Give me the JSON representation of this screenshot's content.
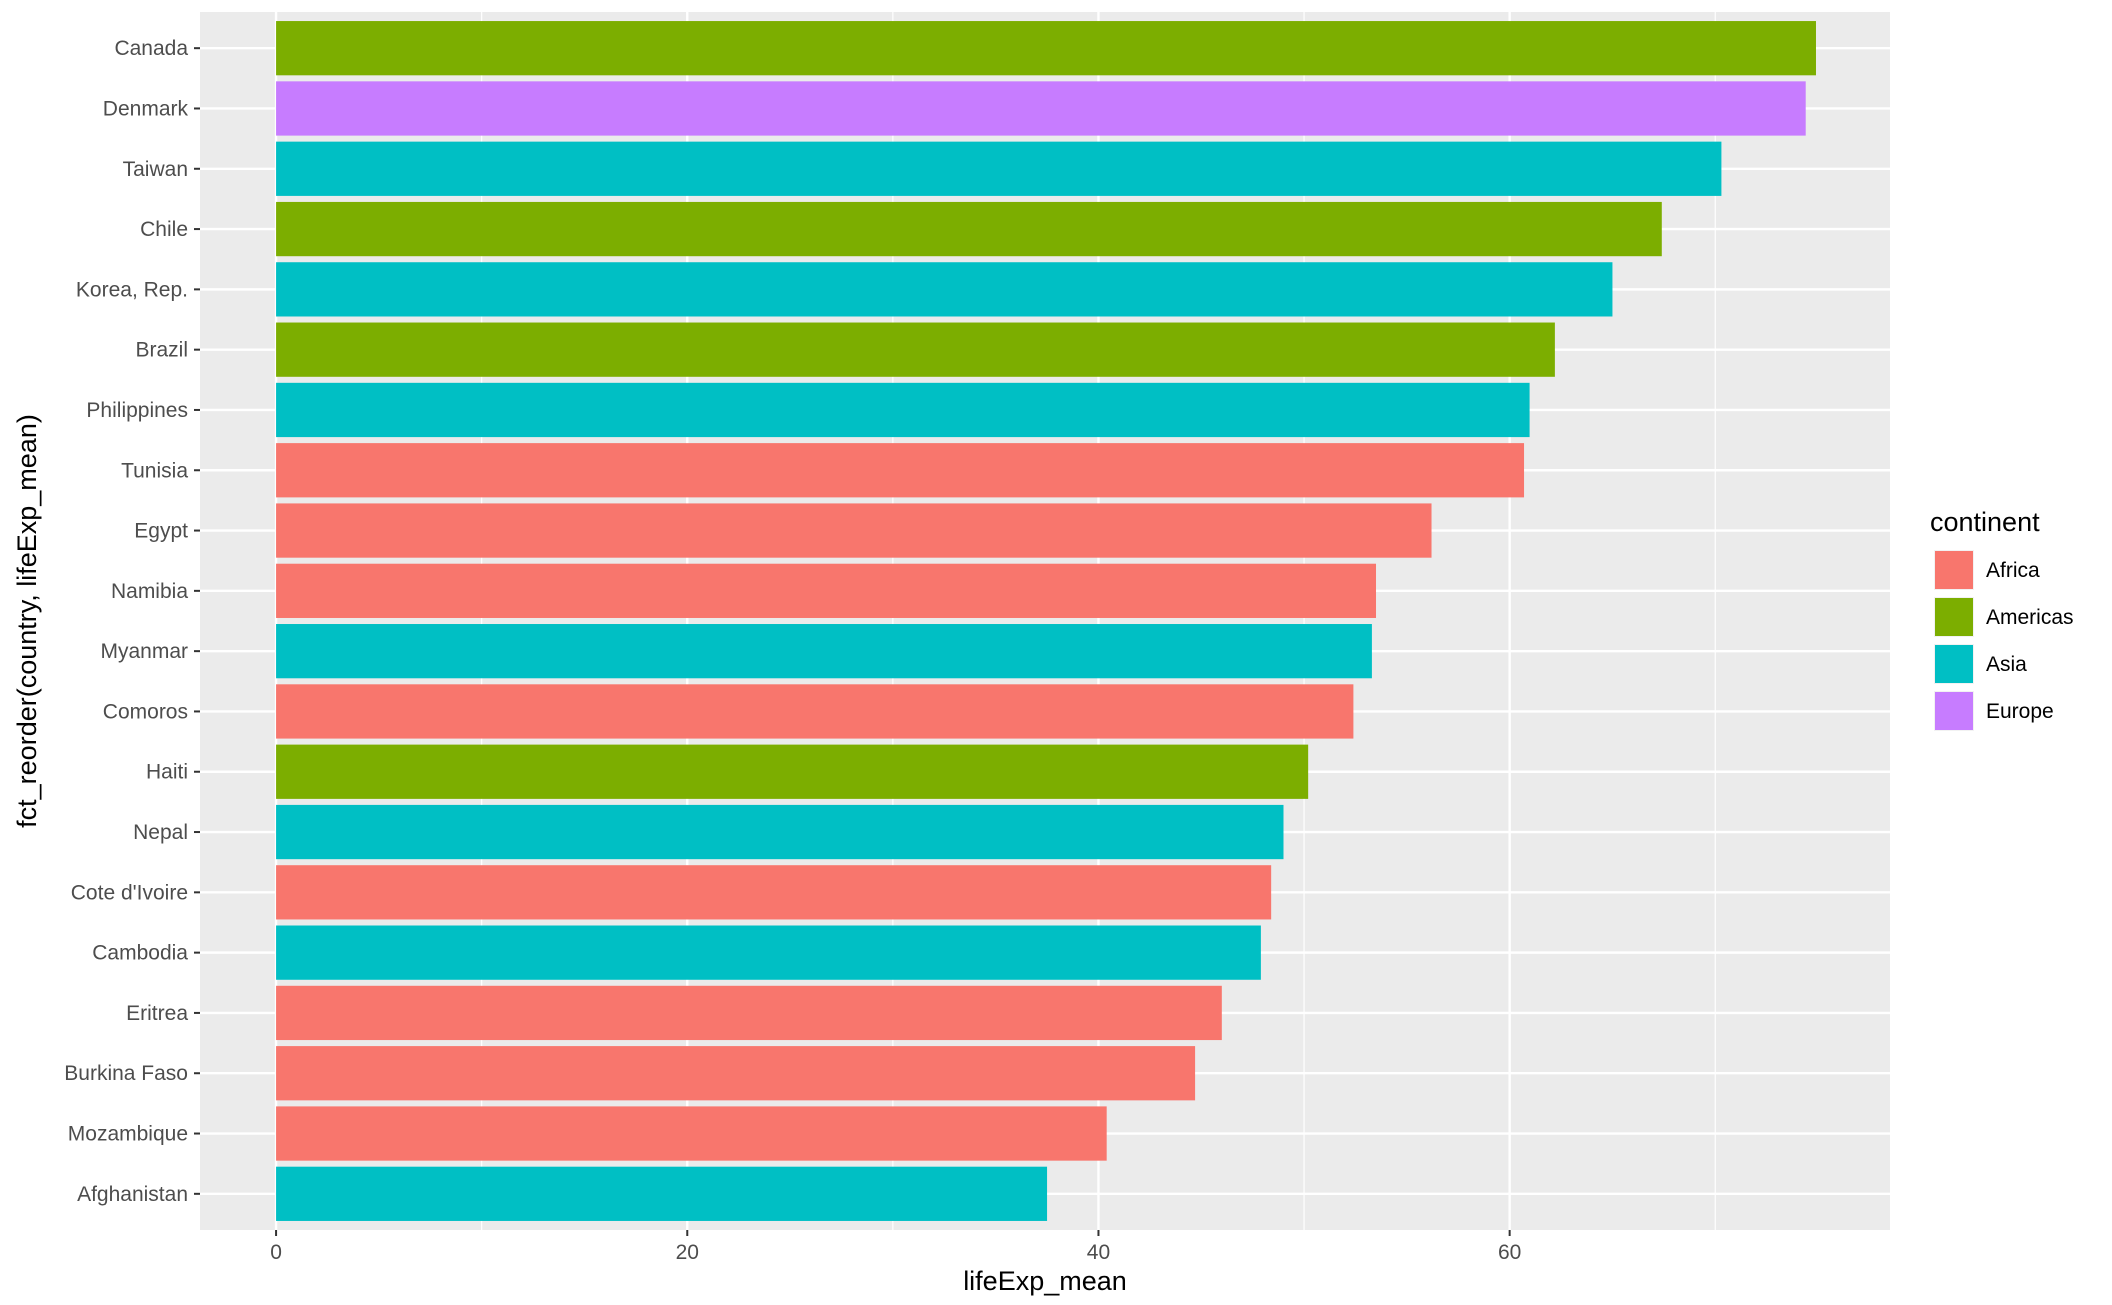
{
  "chart_data": {
    "type": "bar",
    "orientation": "horizontal",
    "xlabel": "lifeExp_mean",
    "ylabel": "fct_reorder(country, lifeExp_mean)",
    "xlim": [
      -3.7,
      78.5
    ],
    "x_ticks": [
      0,
      20,
      40,
      60
    ],
    "grid": true,
    "legend": {
      "title": "continent",
      "placement": "right",
      "entries": [
        {
          "label": "Africa",
          "color": "#F8766D"
        },
        {
          "label": "Americas",
          "color": "#7CAE00"
        },
        {
          "label": "Asia",
          "color": "#00BFC4"
        },
        {
          "label": "Europe",
          "color": "#C77CFF"
        }
      ]
    },
    "bars": [
      {
        "category": "Canada",
        "value": 74.9,
        "continent": "Americas"
      },
      {
        "category": "Denmark",
        "value": 74.4,
        "continent": "Europe"
      },
      {
        "category": "Taiwan",
        "value": 70.3,
        "continent": "Asia"
      },
      {
        "category": "Chile",
        "value": 67.4,
        "continent": "Americas"
      },
      {
        "category": "Korea, Rep.",
        "value": 65.0,
        "continent": "Asia"
      },
      {
        "category": "Brazil",
        "value": 62.2,
        "continent": "Americas"
      },
      {
        "category": "Philippines",
        "value": 60.97,
        "continent": "Asia"
      },
      {
        "category": "Tunisia",
        "value": 60.7,
        "continent": "Africa"
      },
      {
        "category": "Egypt",
        "value": 56.2,
        "continent": "Africa"
      },
      {
        "category": "Namibia",
        "value": 53.5,
        "continent": "Africa"
      },
      {
        "category": "Myanmar",
        "value": 53.3,
        "continent": "Asia"
      },
      {
        "category": "Comoros",
        "value": 52.4,
        "continent": "Africa"
      },
      {
        "category": "Haiti",
        "value": 50.2,
        "continent": "Americas"
      },
      {
        "category": "Nepal",
        "value": 49.0,
        "continent": "Asia"
      },
      {
        "category": "Cote d'Ivoire",
        "value": 48.4,
        "continent": "Africa"
      },
      {
        "category": "Cambodia",
        "value": 47.9,
        "continent": "Asia"
      },
      {
        "category": "Eritrea",
        "value": 46.0,
        "continent": "Africa"
      },
      {
        "category": "Burkina Faso",
        "value": 44.7,
        "continent": "Africa"
      },
      {
        "category": "Mozambique",
        "value": 40.4,
        "continent": "Africa"
      },
      {
        "category": "Afghanistan",
        "value": 37.5,
        "continent": "Asia"
      }
    ]
  }
}
